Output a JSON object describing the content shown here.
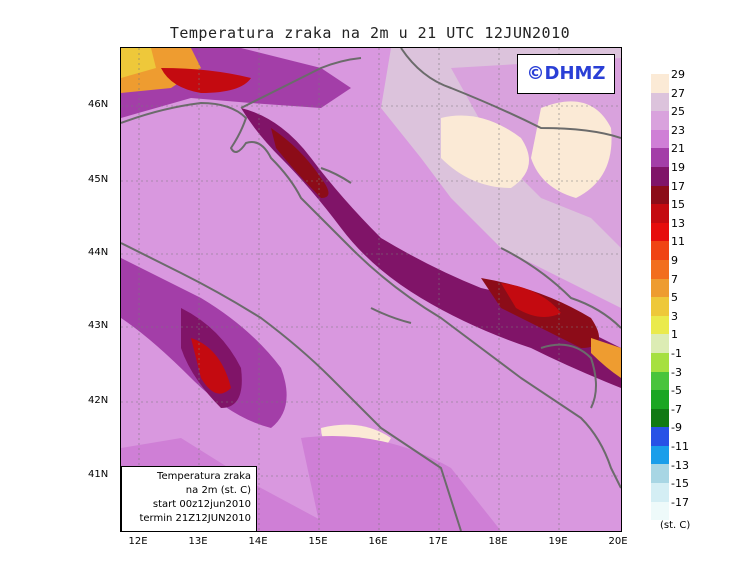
{
  "title": "Temperatura zraka na 2m u 21 UTC 12JUN2010",
  "watermark": "©DHMZ",
  "info_box": {
    "line1": "Temperatura zraka",
    "line2": "na 2m (st. C)",
    "line3": "start 00z12jun2010",
    "line4": "termin 21Z12JUN2010"
  },
  "lat_labels": [
    "46N",
    "45N",
    "44N",
    "43N",
    "42N",
    "41N"
  ],
  "lon_labels": [
    "12E",
    "13E",
    "14E",
    "15E",
    "16E",
    "17E",
    "18E",
    "19E",
    "20E"
  ],
  "legend": {
    "units": "(st. C)",
    "levels": [
      "29",
      "27",
      "25",
      "23",
      "21",
      "19",
      "17",
      "15",
      "13",
      "11",
      "9",
      "7",
      "5",
      "3",
      "1",
      "-1",
      "-3",
      "-5",
      "-7",
      "-9",
      "-11",
      "-13",
      "-15",
      "-17"
    ],
    "colors": [
      "#fbead6",
      "#dcc3dc",
      "#d9a2dd",
      "#cf7fd6",
      "#a33ea8",
      "#801468",
      "#8c0c18",
      "#c40a10",
      "#e60c0c",
      "#f04414",
      "#f26e1e",
      "#ee9c30",
      "#eec83a",
      "#eaea4c",
      "#dcecb4",
      "#a6e040",
      "#48c43c",
      "#1aa622",
      "#107a14",
      "#2852e6",
      "#1a9eea",
      "#a8d6e4",
      "#d4eef4",
      "#eefafa"
    ]
  },
  "colors": {
    "sea": "#d998df",
    "warm_coast": "#801468",
    "hot": "#c40a10",
    "cool_land": "#fbead6",
    "coastline": "#6b6b6b"
  }
}
